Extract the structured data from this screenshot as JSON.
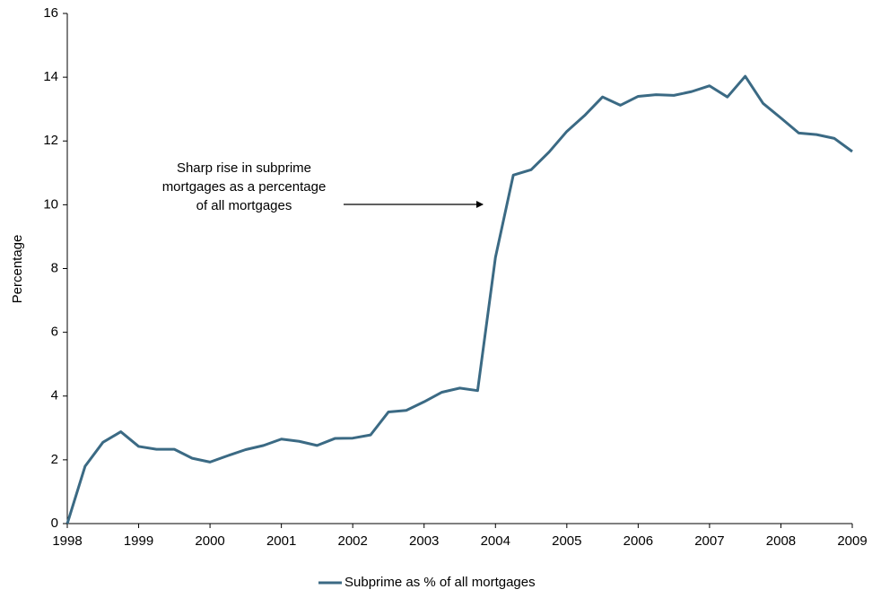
{
  "chart_data": {
    "type": "line",
    "y_label": "Percentage",
    "annotation": [
      "Sharp rise in subprime",
      "mortgages as a percentage",
      "of all mortgages"
    ],
    "x": [
      1998,
      1998.25,
      1998.5,
      1998.75,
      1999,
      1999.25,
      1999.5,
      1999.75,
      2000,
      2000.25,
      2000.5,
      2000.75,
      2001,
      2001.25,
      2001.5,
      2001.75,
      2002,
      2002.25,
      2002.5,
      2002.75,
      2003,
      2003.25,
      2003.5,
      2003.75,
      2004,
      2004.25,
      2004.5,
      2004.75,
      2005,
      2005.25,
      2005.5,
      2005.75,
      2006,
      2006.25,
      2006.5,
      2006.75,
      2007,
      2007.25,
      2007.5,
      2007.75,
      2008,
      2008.25,
      2008.5,
      2008.75,
      2009
    ],
    "series": [
      {
        "name": "Subprime as % of all mortgages",
        "color": "#3b6a84",
        "values": [
          0,
          1.8,
          2.55,
          2.88,
          2.42,
          2.33,
          2.33,
          2.05,
          1.93,
          2.13,
          2.32,
          2.45,
          2.65,
          2.58,
          2.45,
          2.67,
          2.68,
          2.78,
          3.5,
          3.55,
          3.82,
          4.12,
          4.25,
          4.17,
          8.35,
          10.93,
          11.1,
          11.65,
          12.3,
          12.8,
          13.38,
          13.12,
          13.4,
          13.45,
          13.43,
          13.55,
          13.73,
          13.38,
          14.03,
          13.18,
          12.72,
          12.25,
          12.2,
          12.08,
          11.67
        ]
      }
    ],
    "xlim": [
      1998,
      2009
    ],
    "xticks": [
      1998,
      1999,
      2000,
      2001,
      2002,
      2003,
      2004,
      2005,
      2006,
      2007,
      2008,
      2009
    ],
    "ylim": [
      0,
      16
    ],
    "yticks": [
      0,
      2,
      4,
      6,
      8,
      10,
      12,
      14,
      16
    ],
    "grid": false,
    "legend": "bottom"
  }
}
